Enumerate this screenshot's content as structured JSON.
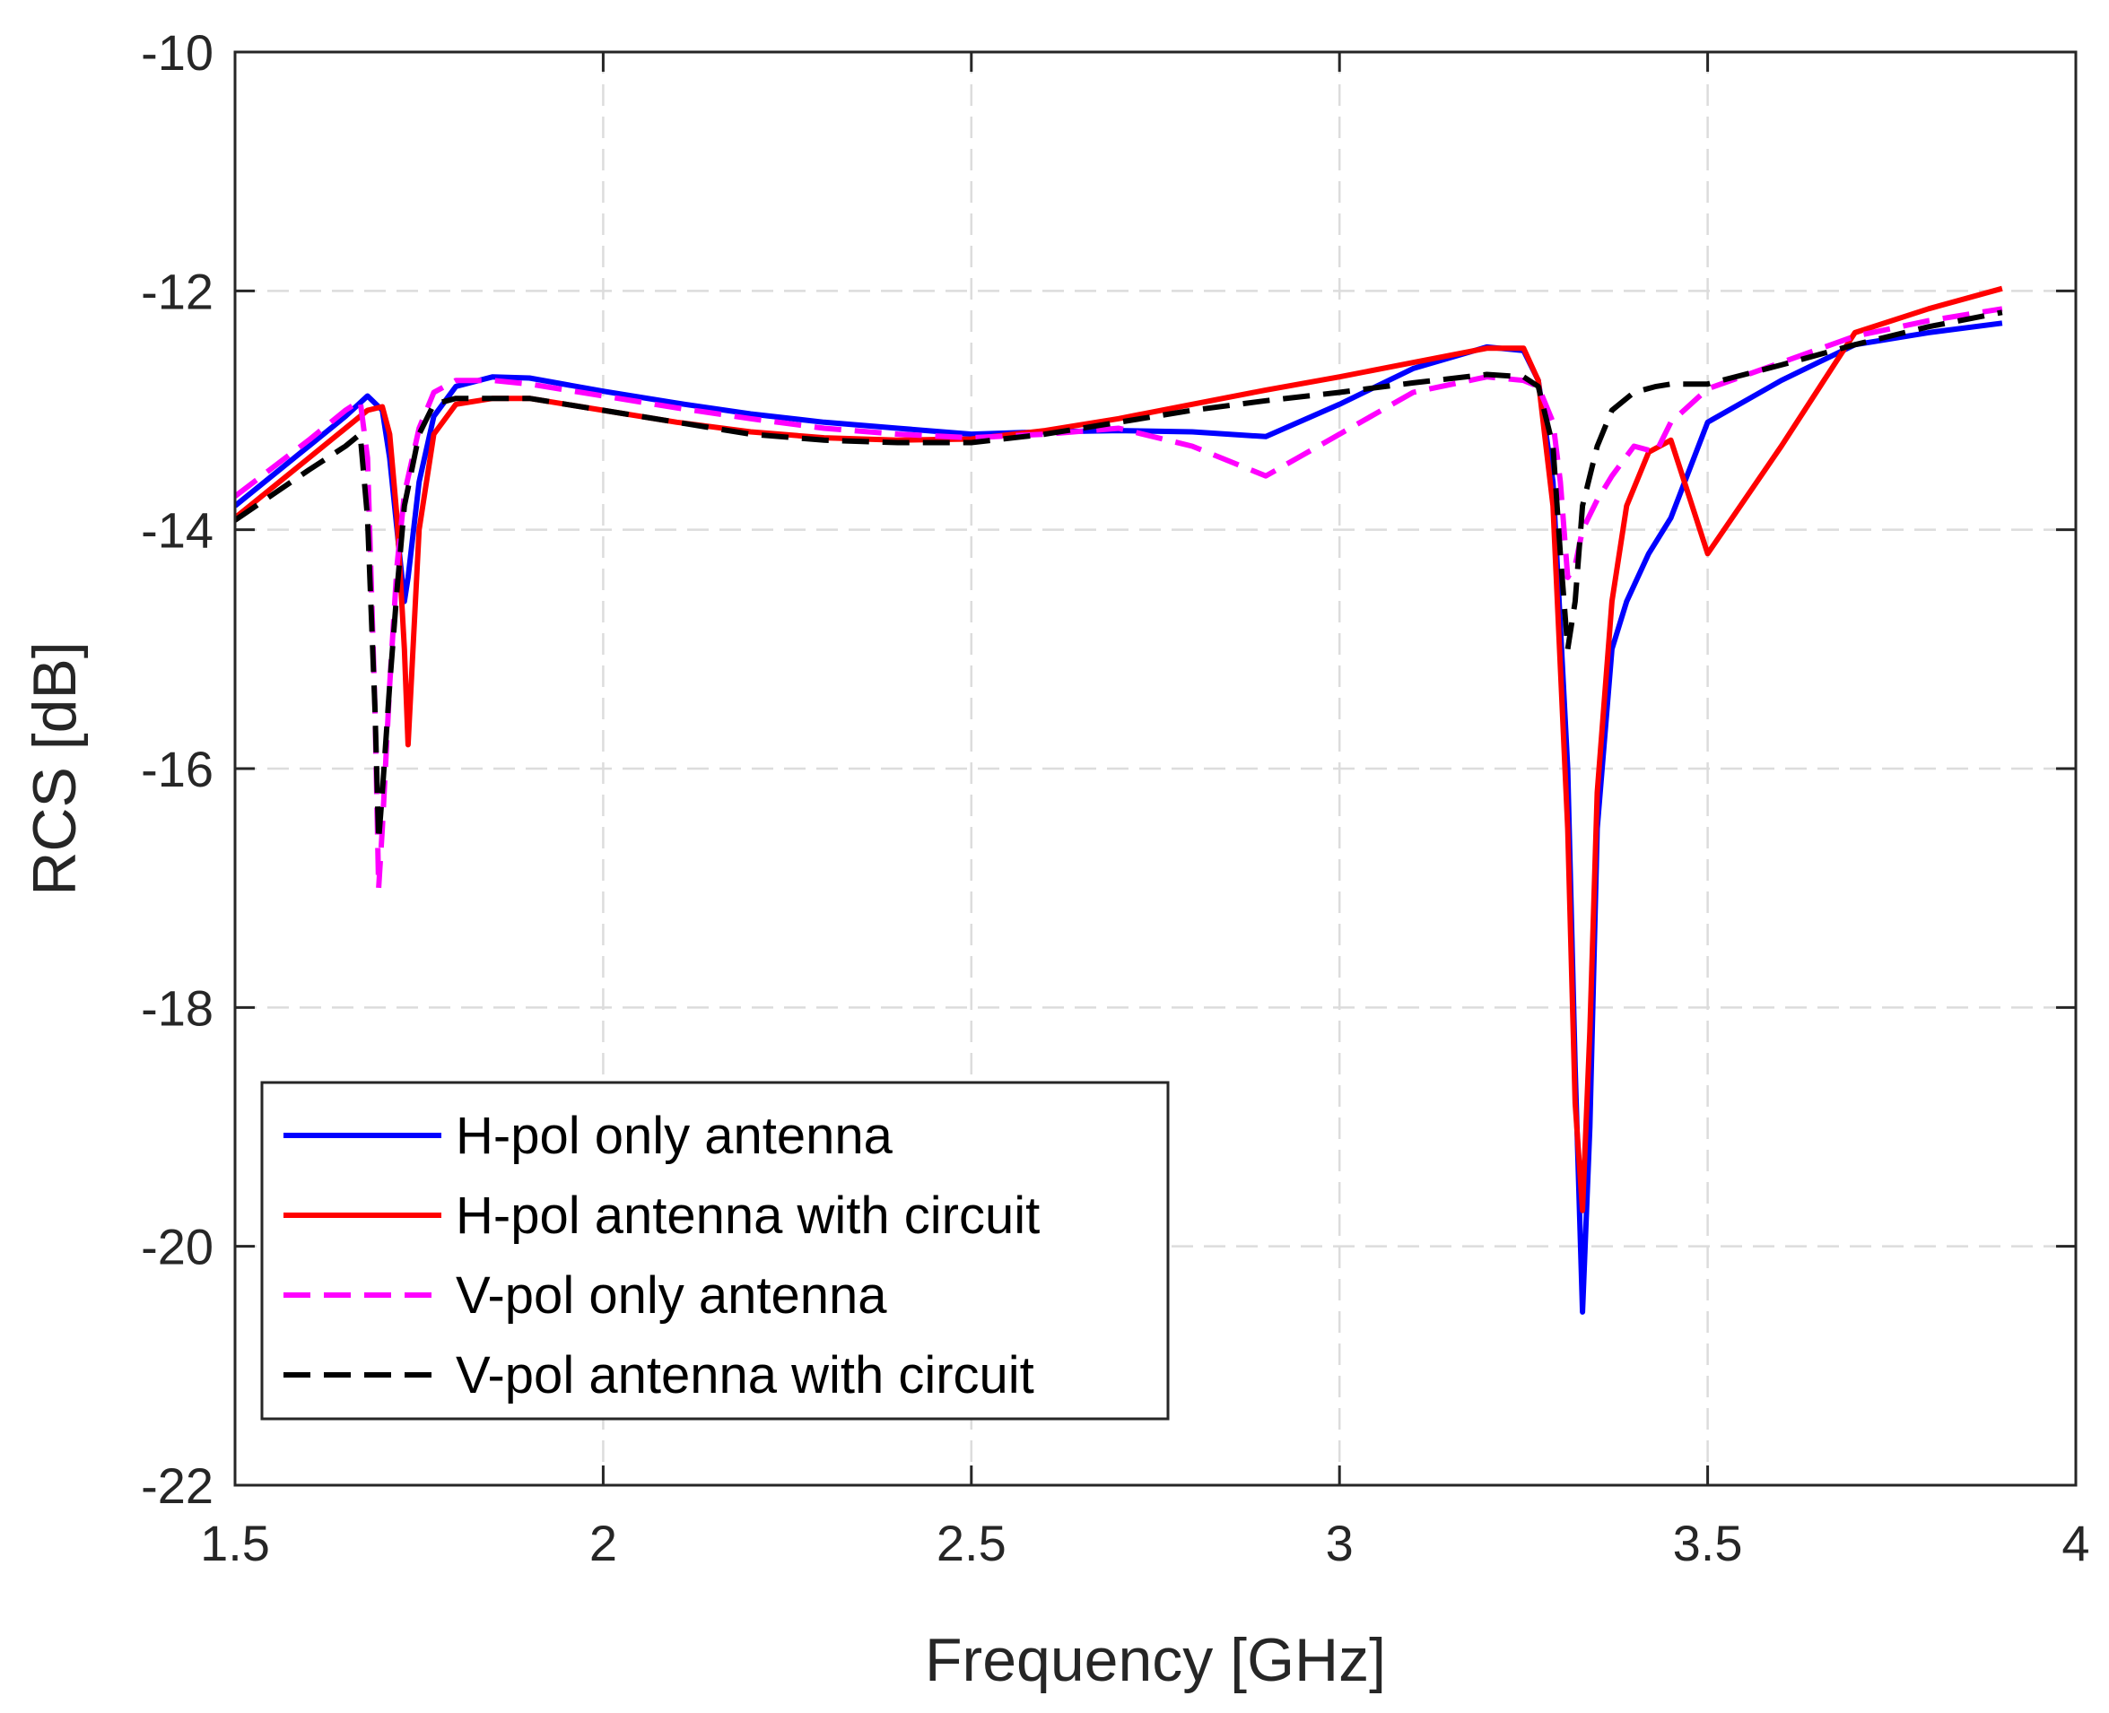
{
  "chart_data": {
    "type": "line",
    "title": "",
    "xlabel": "Frequency [GHz]",
    "ylabel": "RCS [dB]",
    "xlim": [
      1.5,
      4
    ],
    "ylim": [
      -22,
      -10
    ],
    "xticks": [
      1.5,
      2,
      2.5,
      3,
      3.5,
      4
    ],
    "xtick_labels": [
      "1.5",
      "2",
      "2.5",
      "3",
      "3.5",
      "4"
    ],
    "yticks": [
      -22,
      -20,
      -18,
      -16,
      -14,
      -12,
      -10
    ],
    "ytick_labels": [
      "-22",
      "-20",
      "-18",
      "-16",
      "-14",
      "-12",
      "-10"
    ],
    "grid": true,
    "legend_position": "bottom-left",
    "series": [
      {
        "name": "H-pol only antenna",
        "color": "#0000ff",
        "dash": "solid",
        "x": [
          1.5,
          1.6,
          1.65,
          1.68,
          1.7,
          1.71,
          1.72,
          1.73,
          1.735,
          1.75,
          1.77,
          1.8,
          1.85,
          1.9,
          2.0,
          2.1,
          2.2,
          2.3,
          2.4,
          2.5,
          2.6,
          2.7,
          2.8,
          2.9,
          3.0,
          3.1,
          3.2,
          3.25,
          3.27,
          3.29,
          3.31,
          3.32,
          3.33,
          3.34,
          3.35,
          3.37,
          3.39,
          3.42,
          3.45,
          3.5,
          3.6,
          3.7,
          3.8,
          3.9
        ],
        "y": [
          -13.8,
          -13.3,
          -13.05,
          -12.88,
          -13.0,
          -13.4,
          -14.0,
          -14.6,
          -14.4,
          -13.6,
          -13.05,
          -12.8,
          -12.72,
          -12.73,
          -12.84,
          -12.94,
          -13.03,
          -13.1,
          -13.15,
          -13.2,
          -13.18,
          -13.17,
          -13.18,
          -13.22,
          -12.95,
          -12.65,
          -12.47,
          -12.5,
          -12.75,
          -13.6,
          -16.0,
          -18.5,
          -20.55,
          -19.0,
          -16.5,
          -15.0,
          -14.6,
          -14.2,
          -13.9,
          -13.1,
          -12.75,
          -12.45,
          -12.35,
          -12.27
        ]
      },
      {
        "name": "H-pol antenna with circuit",
        "color": "#ff0000",
        "dash": "solid",
        "x": [
          1.5,
          1.6,
          1.65,
          1.68,
          1.7,
          1.71,
          1.72,
          1.73,
          1.735,
          1.74,
          1.75,
          1.77,
          1.8,
          1.85,
          1.9,
          2.0,
          2.1,
          2.2,
          2.3,
          2.4,
          2.5,
          2.6,
          2.7,
          2.8,
          2.9,
          3.0,
          3.1,
          3.2,
          3.25,
          3.27,
          3.29,
          3.31,
          3.32,
          3.33,
          3.34,
          3.35,
          3.37,
          3.39,
          3.42,
          3.45,
          3.5,
          3.6,
          3.7,
          3.8,
          3.9
        ],
        "y": [
          -13.9,
          -13.4,
          -13.15,
          -13.0,
          -12.97,
          -13.2,
          -13.9,
          -15.0,
          -15.8,
          -15.2,
          -14.0,
          -13.2,
          -12.95,
          -12.9,
          -12.9,
          -13.0,
          -13.1,
          -13.18,
          -13.23,
          -13.25,
          -13.24,
          -13.17,
          -13.07,
          -12.95,
          -12.83,
          -12.72,
          -12.6,
          -12.48,
          -12.48,
          -12.75,
          -13.8,
          -16.5,
          -18.8,
          -19.7,
          -18.2,
          -16.2,
          -14.6,
          -13.8,
          -13.35,
          -13.25,
          -14.2,
          -13.3,
          -12.35,
          -12.15,
          -11.98
        ]
      },
      {
        "name": "V-pol only antenna",
        "color": "#ff00ff",
        "dash": "dashed",
        "x": [
          1.5,
          1.6,
          1.65,
          1.67,
          1.68,
          1.69,
          1.695,
          1.7,
          1.71,
          1.72,
          1.73,
          1.75,
          1.77,
          1.8,
          1.85,
          1.9,
          2.0,
          2.1,
          2.2,
          2.3,
          2.4,
          2.5,
          2.6,
          2.7,
          2.8,
          2.9,
          3.0,
          3.1,
          3.2,
          3.25,
          3.27,
          3.29,
          3.3,
          3.31,
          3.32,
          3.33,
          3.35,
          3.37,
          3.4,
          3.43,
          3.45,
          3.5,
          3.6,
          3.7,
          3.8,
          3.9
        ],
        "y": [
          -13.72,
          -13.25,
          -13.0,
          -12.92,
          -13.4,
          -15.5,
          -17.0,
          -16.5,
          -15.3,
          -14.3,
          -13.7,
          -13.15,
          -12.85,
          -12.75,
          -12.75,
          -12.78,
          -12.88,
          -12.98,
          -13.07,
          -13.15,
          -13.2,
          -13.23,
          -13.2,
          -13.15,
          -13.3,
          -13.55,
          -13.2,
          -12.85,
          -12.72,
          -12.75,
          -12.8,
          -13.1,
          -13.6,
          -14.4,
          -14.3,
          -14.0,
          -13.75,
          -13.55,
          -13.3,
          -13.35,
          -13.1,
          -12.82,
          -12.6,
          -12.38,
          -12.25,
          -12.15
        ]
      },
      {
        "name": "V-pol antenna with circuit",
        "color": "#000000",
        "dash": "dashed",
        "x": [
          1.5,
          1.6,
          1.65,
          1.67,
          1.68,
          1.69,
          1.695,
          1.7,
          1.71,
          1.72,
          1.73,
          1.75,
          1.77,
          1.8,
          1.85,
          1.9,
          2.0,
          2.1,
          2.2,
          2.3,
          2.4,
          2.5,
          2.6,
          2.7,
          2.8,
          2.9,
          3.0,
          3.1,
          3.2,
          3.25,
          3.27,
          3.29,
          3.3,
          3.31,
          3.32,
          3.33,
          3.35,
          3.37,
          3.4,
          3.43,
          3.45,
          3.5,
          3.6,
          3.7,
          3.8,
          3.9
        ],
        "y": [
          -13.92,
          -13.5,
          -13.3,
          -13.2,
          -13.9,
          -15.5,
          -16.6,
          -16.2,
          -15.3,
          -14.5,
          -13.8,
          -13.2,
          -12.95,
          -12.9,
          -12.9,
          -12.9,
          -13.0,
          -13.1,
          -13.2,
          -13.25,
          -13.27,
          -13.27,
          -13.2,
          -13.1,
          -13.0,
          -12.92,
          -12.85,
          -12.77,
          -12.7,
          -12.72,
          -12.8,
          -13.3,
          -14.2,
          -15.0,
          -14.6,
          -13.8,
          -13.3,
          -13.0,
          -12.85,
          -12.8,
          -12.78,
          -12.78,
          -12.62,
          -12.45,
          -12.3,
          -12.18
        ]
      }
    ]
  }
}
